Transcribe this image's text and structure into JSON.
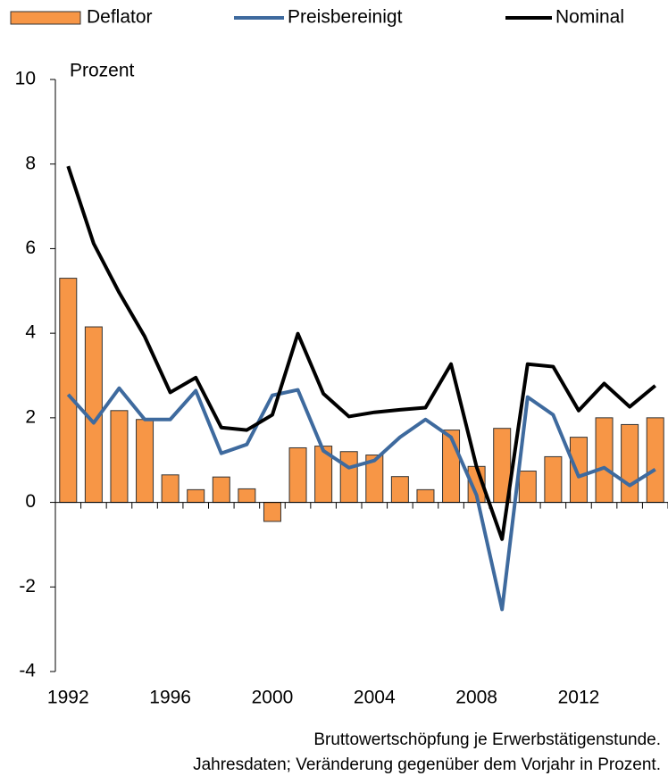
{
  "chart_data": {
    "type": "bar_line",
    "categories": [
      "1992",
      null,
      null,
      null,
      "1996",
      null,
      null,
      null,
      "2000",
      null,
      null,
      null,
      "2004",
      null,
      null,
      null,
      "2008",
      null,
      null,
      null,
      "2012",
      null,
      null,
      null
    ],
    "series": [
      {
        "name": "Deflator",
        "type": "bar",
        "color": "#f79646",
        "values": [
          5.3,
          4.15,
          2.17,
          1.96,
          0.65,
          0.3,
          0.6,
          0.32,
          -0.45,
          1.29,
          1.33,
          1.2,
          1.12,
          0.61,
          0.3,
          1.71,
          0.85,
          1.75,
          0.74,
          1.08,
          1.54,
          2.0,
          1.84,
          2.0
        ]
      },
      {
        "name": "Preisbereinigt",
        "type": "line",
        "color": "#3e6a9e",
        "values": [
          2.55,
          1.88,
          2.7,
          1.96,
          1.96,
          2.64,
          1.16,
          1.37,
          2.53,
          2.66,
          1.22,
          0.82,
          0.99,
          1.54,
          1.96,
          1.54,
          0.17,
          -2.53,
          2.49,
          2.07,
          0.61,
          0.82,
          0.4,
          0.78
        ]
      },
      {
        "name": "Nominal",
        "type": "line",
        "color": "#000000",
        "values": [
          7.95,
          6.12,
          4.96,
          3.92,
          2.6,
          2.95,
          1.77,
          1.71,
          2.07,
          3.99,
          2.57,
          2.03,
          2.13,
          2.19,
          2.24,
          3.27,
          0.84,
          -0.87,
          3.27,
          3.21,
          2.17,
          2.81,
          2.26,
          2.76
        ]
      }
    ],
    "y_label": "Prozent",
    "ylim": [
      -4,
      10
    ],
    "yticks": [
      -4,
      -2,
      0,
      2,
      4,
      6,
      8,
      10
    ],
    "legend": "top",
    "notes": [
      "Bruttowertschöpfung je Erwerbstätigenstunde.",
      "Jahresdaten; Veränderung gegenüber dem Vorjahr in Prozent."
    ]
  }
}
